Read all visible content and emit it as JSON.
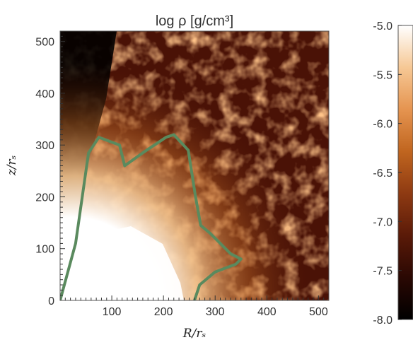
{
  "chart_data": {
    "type": "heatmap",
    "title": "log ρ [g/cm³]",
    "xlabel": "R/rₛ",
    "ylabel": "z/rₛ",
    "xlim": [
      0,
      520
    ],
    "ylim": [
      0,
      520
    ],
    "x_ticks": [
      "100",
      "200",
      "300",
      "400",
      "500"
    ],
    "y_ticks": [
      "0",
      "100",
      "200",
      "300",
      "400",
      "500"
    ],
    "x_tick_values": [
      100,
      200,
      300,
      400,
      500
    ],
    "y_tick_values": [
      0,
      100,
      200,
      300,
      400,
      500
    ],
    "colorbar": {
      "range": [
        -8.0,
        -5.0
      ],
      "ticks": [
        "-5.0",
        "-5.5",
        "-6.0",
        "-6.5",
        "-7.0",
        "-7.5",
        "-8.0"
      ],
      "tick_values": [
        -5.0,
        -5.5,
        -6.0,
        -6.5,
        -7.0,
        -7.5,
        -8.0
      ],
      "colormap": [
        "#000000",
        "#2a0803",
        "#5a1a08",
        "#8e3a12",
        "#c0651f",
        "#e59450",
        "#f6c895",
        "#ffffff"
      ]
    },
    "contour_color": "#5a8a5e",
    "contour": [
      [
        0,
        0
      ],
      [
        30,
        110
      ],
      [
        55,
        285
      ],
      [
        75,
        315
      ],
      [
        115,
        300
      ],
      [
        125,
        260
      ],
      [
        160,
        285
      ],
      [
        205,
        315
      ],
      [
        220,
        320
      ],
      [
        248,
        290
      ],
      [
        262,
        200
      ],
      [
        272,
        145
      ],
      [
        290,
        130
      ],
      [
        330,
        90
      ],
      [
        350,
        80
      ],
      [
        340,
        70
      ],
      [
        300,
        55
      ],
      [
        270,
        30
      ],
      [
        260,
        0
      ]
    ]
  }
}
